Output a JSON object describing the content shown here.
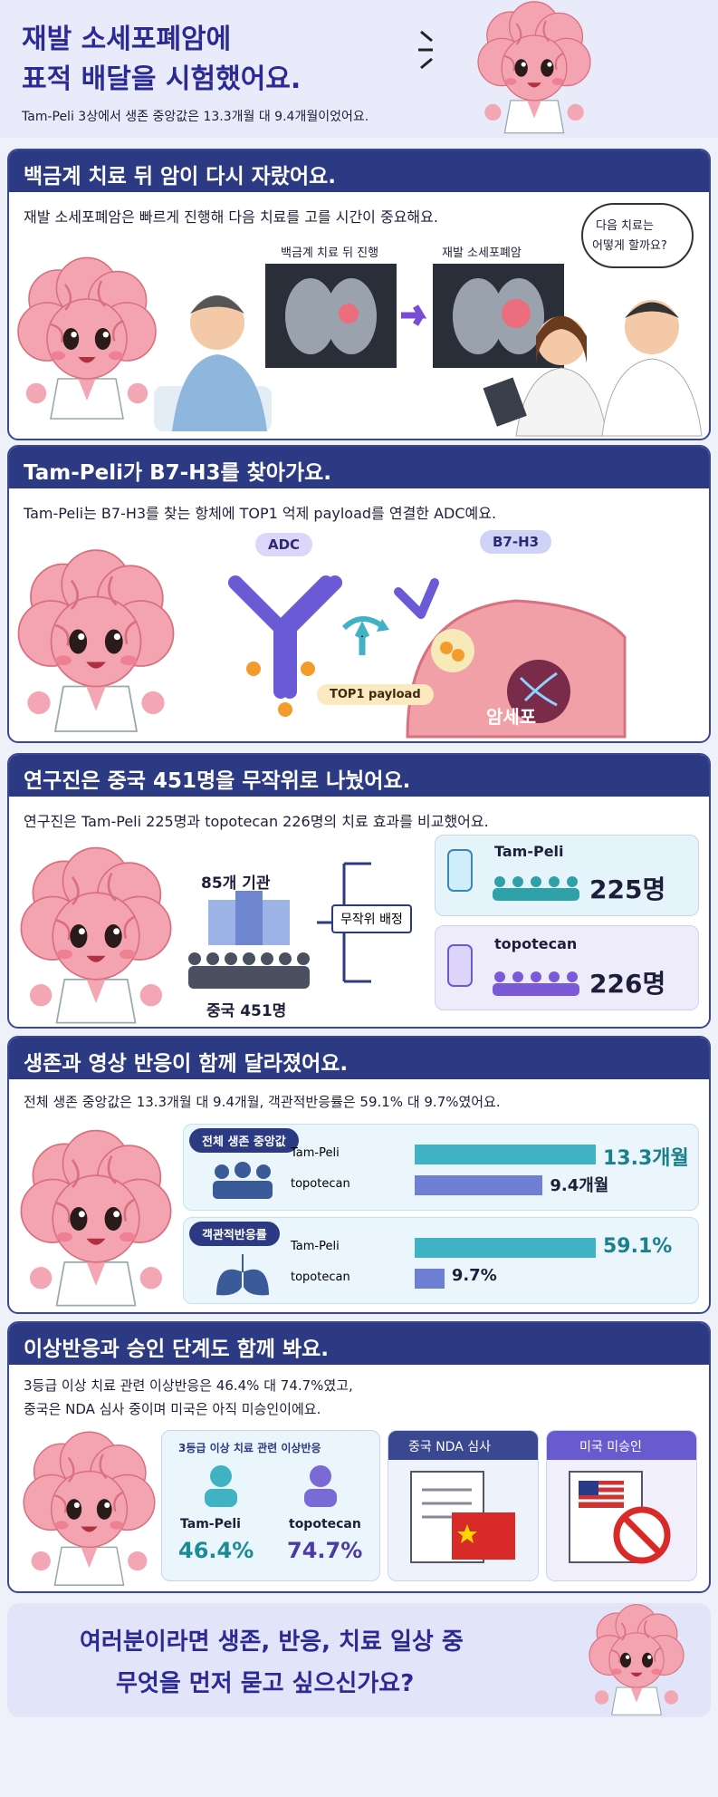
{
  "header": {
    "title": [
      "재발 소세포폐암에",
      "표적 배달을 시험했어요."
    ],
    "subtitle": "Tam-Peli 3상에서 생존 중앙값은 13.3개월 대 9.4개월이었어요."
  },
  "sections": [
    {
      "heading": "백금계 치료 뒤 암이 다시 자랐어요.",
      "text": "재발 소세포폐암은 빠르게 진행해 다음 치료를 고를 시간이 중요해요.",
      "scan_labels": [
        "백금계 치료 뒤 진행",
        "재발 소세포폐암"
      ],
      "bubble": [
        "다음 치료는",
        "어떻게 할까요?"
      ]
    },
    {
      "heading": "Tam-Peli가 B7-H3를 찾아가요.",
      "text": "Tam-Peli는 B7-H3를 찾는 항체에 TOP1 억제 payload를 연결한 ADC예요.",
      "labels": {
        "adc": "ADC",
        "target": "B7-H3",
        "payload": "TOP1 payload",
        "cell": "암세포"
      }
    },
    {
      "heading": "연구진은 중국 451명을 무작위로 나눴어요.",
      "text": "연구진은 Tam-Peli 225명과 topotecan 226명의 치료 효과를 비교했어요.",
      "sites": "85개 기관",
      "total": "중국 451명",
      "randomize": "무작위 배정",
      "arms": [
        {
          "name": "Tam-Peli",
          "count": "225명"
        },
        {
          "name": "topotecan",
          "count": "226명"
        }
      ]
    },
    {
      "heading": "생존과 영상 반응이 함께 달라졌어요.",
      "text": "전체 생존 중앙값은 13.3개월 대 9.4개월, 객관적반응률은 59.1% 대 9.7%였어요.",
      "panels": [
        {
          "label": "전체 생존 중앙값",
          "categories": [
            "Tam-Peli",
            "topotecan"
          ],
          "values": [
            13.3,
            9.4
          ],
          "value_labels": [
            "13.3개월",
            "9.4개월"
          ],
          "colors": [
            "#3fb3c4",
            "#6f7fd3"
          ]
        },
        {
          "label": "객관적반응률",
          "categories": [
            "Tam-Peli",
            "topotecan"
          ],
          "values": [
            59.1,
            9.7
          ],
          "value_labels": [
            "59.1%",
            "9.7%"
          ],
          "colors": [
            "#3fb3c4",
            "#6f7fd3"
          ]
        }
      ]
    },
    {
      "heading": "이상반응과 승인 단계도 함께 봐요.",
      "text": [
        "3등급 이상 치료 관련 이상반응은 46.4% 대 74.7%였고,",
        "중국은 NDA 심사 중이며 미국은 아직 미승인이에요."
      ],
      "ae": {
        "label": "3등급 이상 치료 관련 이상반응",
        "arms": [
          {
            "name": "Tam-Peli",
            "value": "46.4%"
          },
          {
            "name": "topotecan",
            "value": "74.7%"
          }
        ]
      },
      "cards": [
        "중국 NDA 심사",
        "미국 미승인"
      ]
    }
  ],
  "footer": [
    "여러분이라면 생존, 반응, 치료 일상 중",
    "무엇을 먼저 묻고 싶으신가요?"
  ]
}
